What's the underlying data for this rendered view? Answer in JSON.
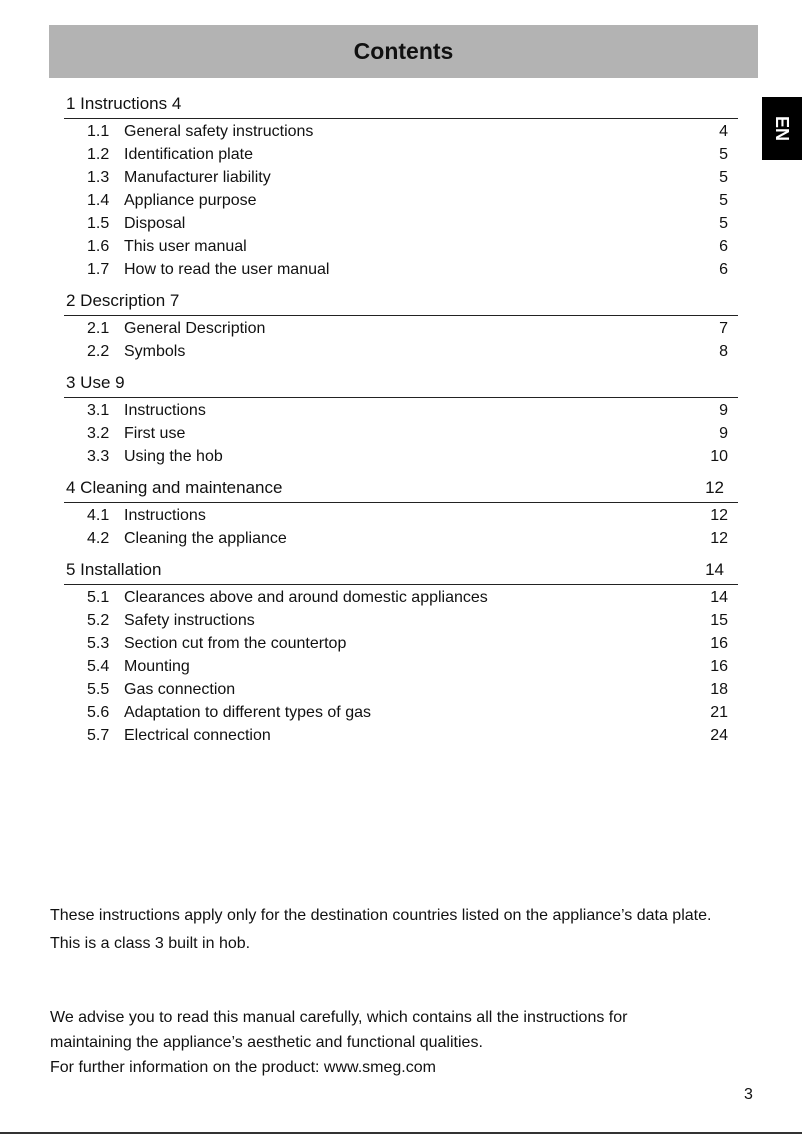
{
  "title": "Contents",
  "lang_tab": "EN",
  "sections": [
    {
      "heading": "1 Instructions 4",
      "page": "",
      "items": [
        {
          "num": "1.1",
          "text": "General safety instructions",
          "page": "4"
        },
        {
          "num": "1.2",
          "text": "Identification plate",
          "page": "5"
        },
        {
          "num": "1.3",
          "text": "Manufacturer liability",
          "page": "5"
        },
        {
          "num": "1.4",
          "text": "Appliance purpose",
          "page": "5"
        },
        {
          "num": "1.5",
          "text": "Disposal",
          "page": "5"
        },
        {
          "num": "1.6",
          "text": "This user manual",
          "page": "6"
        },
        {
          "num": "1.7",
          "text": "How to read the user manual",
          "page": "6"
        }
      ]
    },
    {
      "heading": "2 Description 7",
      "page": "",
      "items": [
        {
          "num": "2.1",
          "text": "General Description",
          "page": "7"
        },
        {
          "num": "2.2",
          "text": "Symbols",
          "page": "8"
        }
      ]
    },
    {
      "heading": "3 Use 9",
      "page": "",
      "items": [
        {
          "num": "3.1",
          "text": "Instructions",
          "page": "9"
        },
        {
          "num": "3.2",
          "text": "First use",
          "page": "9"
        },
        {
          "num": "3.3",
          "text": "Using the hob",
          "page": "10"
        }
      ]
    },
    {
      "heading": "4 Cleaning and maintenance",
      "page": "12",
      "items": [
        {
          "num": "4.1",
          "text": "Instructions",
          "page": "12"
        },
        {
          "num": "4.2",
          "text": "Cleaning the appliance",
          "page": "12"
        }
      ]
    },
    {
      "heading": "5 Installation",
      "page": "14",
      "items": [
        {
          "num": "5.1",
          "text": "Clearances above and around domestic appliances",
          "page": "14"
        },
        {
          "num": "5.2",
          "text": "Safety instructions",
          "page": "15"
        },
        {
          "num": "5.3",
          "text": "Section cut from the countertop",
          "page": "16"
        },
        {
          "num": "5.4",
          "text": "Mounting",
          "page": "16"
        },
        {
          "num": "5.5",
          "text": "Gas connection",
          "page": "18"
        },
        {
          "num": "5.6",
          "text": "Adaptation to different types of gas",
          "page": "21"
        },
        {
          "num": "5.7",
          "text": "Electrical connection",
          "page": "24"
        }
      ]
    }
  ],
  "notes": [
    "These instructions apply only for the destination countries listed on the appliance’s data plate.",
    "This is a class 3 built in hob.",
    "We advise you to read this manual carefully, which contains all the instructions for maintaining the appliance’s aesthetic and functional qualities.",
    "For further information on the product: www.smeg.com"
  ],
  "page_number": "3"
}
